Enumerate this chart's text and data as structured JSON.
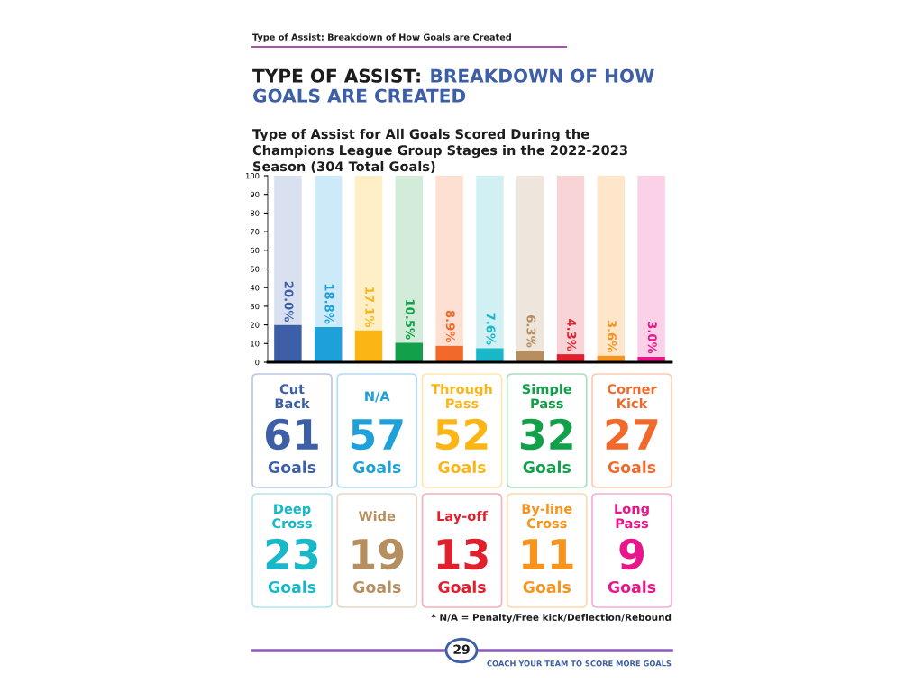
{
  "chart_data": [
    {
      "type": "bar",
      "title": "Type of Assist for All Goals Scored During the Champions League Group Stages in the 2022-2023 Season (304 Total Goals)",
      "annotations": [
        "Type of Assist: Breakdown of How Goals are Created",
        "TYPE OF ASSIST:",
        "BREAKDOWN OF HOW GOALS ARE CREATED",
        "29",
        "COACH YOUR TEAM TO SCORE MORE GOALS"
      ],
      "categories": [
        null,
        null,
        null,
        null,
        null,
        null,
        null,
        null,
        null,
        null
      ],
      "stacked": true,
      "series": [
        {
          "colors": [
            "#3d5fa8",
            "#1ea0db",
            "#fbb616",
            "#12a04a",
            "#f26a2b",
            "#19b8c8",
            "#b58f5f",
            "#e1202e",
            "#f7941d",
            "#e7168a"
          ],
          "values": [
            20.0,
            18.8,
            17.1,
            10.5,
            8.9,
            7.6,
            6.3,
            4.3,
            3.6,
            3.0
          ],
          "value_labels": [
            "20.0%",
            "18.8%",
            "17.1%",
            "10.5%",
            "8.9%",
            "7.6%",
            "6.3%",
            "4.3%",
            "3.6%",
            "3.0%"
          ]
        },
        {
          "colors": [
            "#d9e0f0",
            "#cdeaf8",
            "#feefc6",
            "#d3ecd9",
            "#fde0d2",
            "#d1f0f3",
            "#eee6dc",
            "#f9d4d6",
            "#fde6c9",
            "#fad1e6"
          ],
          "values": [
            80.0,
            81.2,
            82.9,
            89.5,
            91.1,
            92.4,
            93.7,
            95.7,
            96.4,
            97.0
          ]
        }
      ],
      "ylim": [
        0,
        100
      ],
      "yticks": [
        0,
        10,
        20,
        30,
        40,
        50,
        60,
        70,
        80,
        90,
        100
      ],
      "tick_labels": "y",
      "grid": false,
      "legend": false
    },
    {
      "type": "other",
      "categories": [
        "Cut Back",
        "N/A",
        "Through Pass",
        "Simple Pass",
        "Corner Kick",
        "Deep Cross",
        "Wide",
        "Lay-off",
        "By-line Cross",
        "Long Pass"
      ],
      "values": [
        61,
        57,
        52,
        32,
        27,
        23,
        19,
        13,
        11,
        9
      ],
      "data_labels": true,
      "colors": [
        "#3d5fa8",
        "#1ea0db",
        "#fbb616",
        "#12a04a",
        "#f26a2b",
        "#19b8c8",
        "#b58f5f",
        "#e1202e",
        "#f7941d",
        "#e7168a"
      ],
      "annotations": [
        "Goals",
        "* N/A = Penalty/Free kick/Deflection/Rebound"
      ]
    }
  ]
}
